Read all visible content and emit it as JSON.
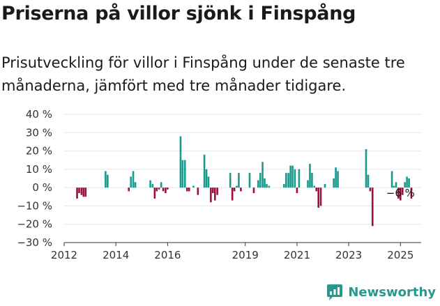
{
  "header": {
    "title": "Priserna på villor sjönk i Finspång",
    "subtitle": "Prisutveckling för villor i Finspång under de senaste tre månaderna, jämfört med tre månader tidigare."
  },
  "brand": {
    "name": "Newsworthy",
    "icon": "newsworthy-logo-icon",
    "color": "#29988c"
  },
  "colors": {
    "positive": "#1a9a8c",
    "negative": "#9c0f45",
    "grid": "#e6e6e6",
    "axis": "#333333"
  },
  "annotation": {
    "text": "−6 %"
  },
  "chart_data": {
    "type": "bar",
    "title": "",
    "xlabel": "",
    "ylabel": "",
    "ylim": [
      -30,
      40
    ],
    "xlim": [
      2012.0,
      2025.8
    ],
    "grid": true,
    "legend": "none",
    "yticks": [
      40,
      30,
      20,
      10,
      0,
      -10,
      -20,
      -30
    ],
    "ytick_labels": [
      "40 %",
      "30 %",
      "20 %",
      "10 %",
      "0 %",
      "−10 %",
      "−20 %",
      "−30 %"
    ],
    "xticks": [
      2012,
      2014,
      2016,
      2019,
      2021,
      2023,
      2025
    ],
    "xtick_labels": [
      "2012",
      "2014",
      "2016",
      "2019",
      "2021",
      "2023",
      "2025"
    ],
    "x": [
      2012.5,
      2012.58,
      2012.67,
      2012.75,
      2012.83,
      2013.6,
      2013.68,
      2014.5,
      2014.58,
      2014.67,
      2014.75,
      2015.33,
      2015.42,
      2015.5,
      2015.58,
      2015.67,
      2015.75,
      2015.83,
      2015.92,
      2016.0,
      2016.5,
      2016.58,
      2016.67,
      2016.75,
      2016.83,
      2017.0,
      2017.17,
      2017.42,
      2017.5,
      2017.58,
      2017.67,
      2017.75,
      2017.83,
      2017.92,
      2018.42,
      2018.5,
      2018.58,
      2018.67,
      2018.75,
      2018.83,
      2019.17,
      2019.33,
      2019.5,
      2019.58,
      2019.67,
      2019.75,
      2019.83,
      2019.92,
      2020.5,
      2020.58,
      2020.67,
      2020.75,
      2020.83,
      2020.92,
      2021.0,
      2021.08,
      2021.42,
      2021.5,
      2021.58,
      2021.67,
      2021.75,
      2021.83,
      2021.92,
      2022.08,
      2022.42,
      2022.5,
      2022.58,
      2023.67,
      2023.75,
      2023.83,
      2023.92,
      2024.67,
      2024.75,
      2024.83,
      2024.92,
      2025.0,
      2025.08,
      2025.17,
      2025.25,
      2025.33,
      2025.42
    ],
    "values": [
      -6,
      -3,
      -4,
      -5,
      -5,
      9,
      7,
      -2,
      6,
      9,
      3,
      4,
      2,
      -6,
      -2,
      -1,
      3,
      -2,
      -3,
      -1,
      28,
      15,
      15,
      -2,
      -2,
      1,
      -4,
      18,
      10,
      6,
      -8,
      -3,
      -7,
      -4,
      8,
      -7,
      -2,
      1,
      8,
      -2,
      8,
      -3,
      4,
      8,
      14,
      5,
      2,
      1,
      2,
      8,
      8,
      12,
      12,
      10,
      -3,
      10,
      4,
      13,
      8,
      1,
      -2,
      -11,
      -10,
      2,
      5,
      11,
      9,
      21,
      7,
      -2,
      -21,
      9,
      1,
      3,
      -6,
      -7,
      -4,
      3,
      6,
      5,
      -6
    ]
  }
}
